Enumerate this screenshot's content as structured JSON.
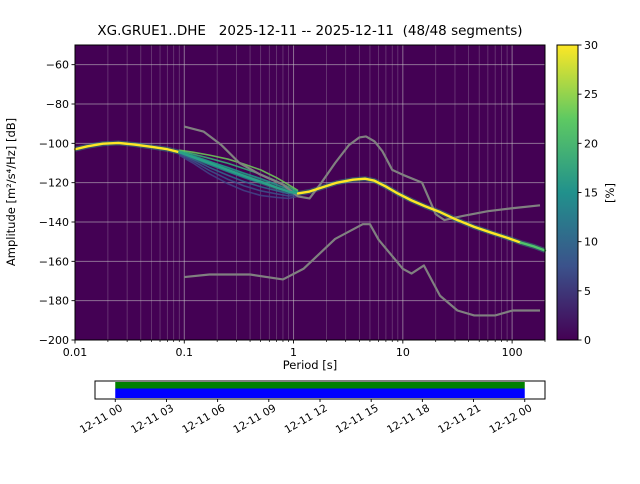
{
  "title": "XG.GRUE1..DHE   2025-12-11 -- 2025-12-11  (48/48 segments)",
  "axes": {
    "xlabel": "Period [s]",
    "ylabel": "Amplitude [m²/s⁴/Hz] [dB]",
    "x_scale": "log",
    "xlim": [
      0.01,
      200
    ],
    "ylim": [
      -200,
      -50
    ],
    "x_tick_values": [
      0.01,
      0.1,
      1,
      10,
      100
    ],
    "x_tick_labels": [
      "0.01",
      "0.1",
      "1",
      "10",
      "100"
    ],
    "y_tick_values": [
      -200,
      -180,
      -160,
      -140,
      -120,
      -100,
      -80,
      -60
    ],
    "y_tick_labels": [
      "−200",
      "−180",
      "−160",
      "−140",
      "−120",
      "−100",
      "−80",
      "−60"
    ],
    "grid": true
  },
  "colorbar": {
    "label": "[%]",
    "min": 0,
    "max": 30,
    "tick_values": [
      0,
      5,
      10,
      15,
      20,
      25,
      30
    ],
    "tick_labels": [
      "0",
      "5",
      "10",
      "15",
      "20",
      "25",
      "30"
    ],
    "colors": [
      "#440154",
      "#3b528b",
      "#21918c",
      "#5ec962",
      "#fde725"
    ]
  },
  "colors": {
    "background": "#440154",
    "grid": "#c9c9c9",
    "noise_model": "#808080",
    "frame": "#000000",
    "halo": "#27ad81"
  },
  "chart_data": {
    "type": "heatmap",
    "description": "PPSD probability density (percent) vs period and amplitude; mode curve with spread band between 0.09 s and 1.1 s, plus Peterson high/low noise model reference lines",
    "x_scale": "log",
    "xlim": [
      0.01,
      200
    ],
    "ylim": [
      -200,
      -50
    ],
    "colorbar_percent_range": [
      0,
      30
    ],
    "mode_curve": [
      [
        0.01,
        -103
      ],
      [
        0.013,
        -101.5
      ],
      [
        0.018,
        -100.2
      ],
      [
        0.025,
        -99.8
      ],
      [
        0.035,
        -100.6
      ],
      [
        0.05,
        -101.8
      ],
      [
        0.07,
        -103
      ],
      [
        0.09,
        -104.5
      ],
      [
        0.12,
        -107
      ],
      [
        0.17,
        -110
      ],
      [
        0.25,
        -113.5
      ],
      [
        0.35,
        -116.5
      ],
      [
        0.5,
        -119.5
      ],
      [
        0.7,
        -122.5
      ],
      [
        0.9,
        -124.5
      ],
      [
        1.1,
        -125.5
      ],
      [
        1.4,
        -124.5
      ],
      [
        1.8,
        -122.5
      ],
      [
        2.5,
        -120
      ],
      [
        3.5,
        -118.5
      ],
      [
        4.5,
        -118
      ],
      [
        5.5,
        -119
      ],
      [
        7,
        -122
      ],
      [
        9,
        -125.5
      ],
      [
        12,
        -129
      ],
      [
        16,
        -132
      ],
      [
        22,
        -135
      ],
      [
        30,
        -138.5
      ],
      [
        45,
        -142.5
      ],
      [
        65,
        -145.5
      ],
      [
        90,
        -148
      ],
      [
        120,
        -150.5
      ],
      [
        160,
        -152.5
      ],
      [
        200,
        -154.5
      ]
    ],
    "spread": {
      "x": [
        0.09,
        0.12,
        0.17,
        0.25,
        0.35,
        0.5,
        0.7,
        0.9,
        1.1
      ],
      "upper": [
        -103.5,
        -104.5,
        -106,
        -108,
        -110.5,
        -113.5,
        -117.5,
        -121,
        -124
      ],
      "lower": [
        -106,
        -110,
        -115.5,
        -120.5,
        -124,
        -126.5,
        -127.5,
        -128,
        -127
      ]
    },
    "strand_fracs": [
      0,
      0.17,
      0.34,
      0.5,
      0.66,
      0.82,
      1
    ],
    "strand_colors": [
      "#6ece58",
      "#35b779",
      "#1f9e89",
      "#26828e",
      "#31688e",
      "#3b528b",
      "#414487"
    ],
    "mode_style": {
      "width": 2.4,
      "segments": [
        {
          "from": 0.01,
          "to": 0.09,
          "color": "#fde725"
        },
        {
          "from": 0.09,
          "to": 1.1,
          "color": "#2aa187"
        },
        {
          "from": 1.1,
          "to": 120,
          "color": "#fde725"
        },
        {
          "from": 120,
          "to": 200,
          "color": "#50c46a"
        }
      ]
    },
    "noise_models": {
      "high": [
        [
          0.1,
          -91.5
        ],
        [
          0.15,
          -94
        ],
        [
          0.22,
          -101
        ],
        [
          0.32,
          -110
        ],
        [
          0.5,
          -116
        ],
        [
          0.8,
          -121
        ],
        [
          1.1,
          -127
        ],
        [
          1.4,
          -128
        ],
        [
          1.8,
          -120
        ],
        [
          2.4,
          -110
        ],
        [
          3.2,
          -101
        ],
        [
          4.0,
          -97
        ],
        [
          4.6,
          -96.5
        ],
        [
          5.5,
          -99
        ],
        [
          6.5,
          -104
        ],
        [
          8.0,
          -113.5
        ],
        [
          10,
          -116
        ],
        [
          15,
          -120
        ],
        [
          20,
          -136
        ],
        [
          24,
          -139
        ],
        [
          35,
          -137
        ],
        [
          60,
          -134.5
        ],
        [
          100,
          -133
        ],
        [
          180,
          -131.5
        ]
      ],
      "low": [
        [
          0.1,
          -168
        ],
        [
          0.17,
          -166.7
        ],
        [
          0.4,
          -166.7
        ],
        [
          0.8,
          -169.2
        ],
        [
          1.24,
          -163.7
        ],
        [
          2.4,
          -148.6
        ],
        [
          4.3,
          -141.1
        ],
        [
          5.0,
          -141.1
        ],
        [
          6.0,
          -149
        ],
        [
          10,
          -163.8
        ],
        [
          12,
          -166.2
        ],
        [
          15.6,
          -162.1
        ],
        [
          21.9,
          -177.5
        ],
        [
          31.6,
          -185
        ],
        [
          45,
          -187.5
        ],
        [
          70,
          -187.5
        ],
        [
          101,
          -185
        ],
        [
          180,
          -185
        ]
      ]
    }
  },
  "timeline": {
    "tick_labels": [
      "12-11 00",
      "12-11 03",
      "12-11 06",
      "12-11 09",
      "12-11 12",
      "12-11 15",
      "12-11 18",
      "12-11 21",
      "12-12 00"
    ],
    "coverage": [
      0.045,
      0.955
    ],
    "bar_colors": {
      "top": "#008000",
      "bottom": "#0000ff"
    }
  }
}
